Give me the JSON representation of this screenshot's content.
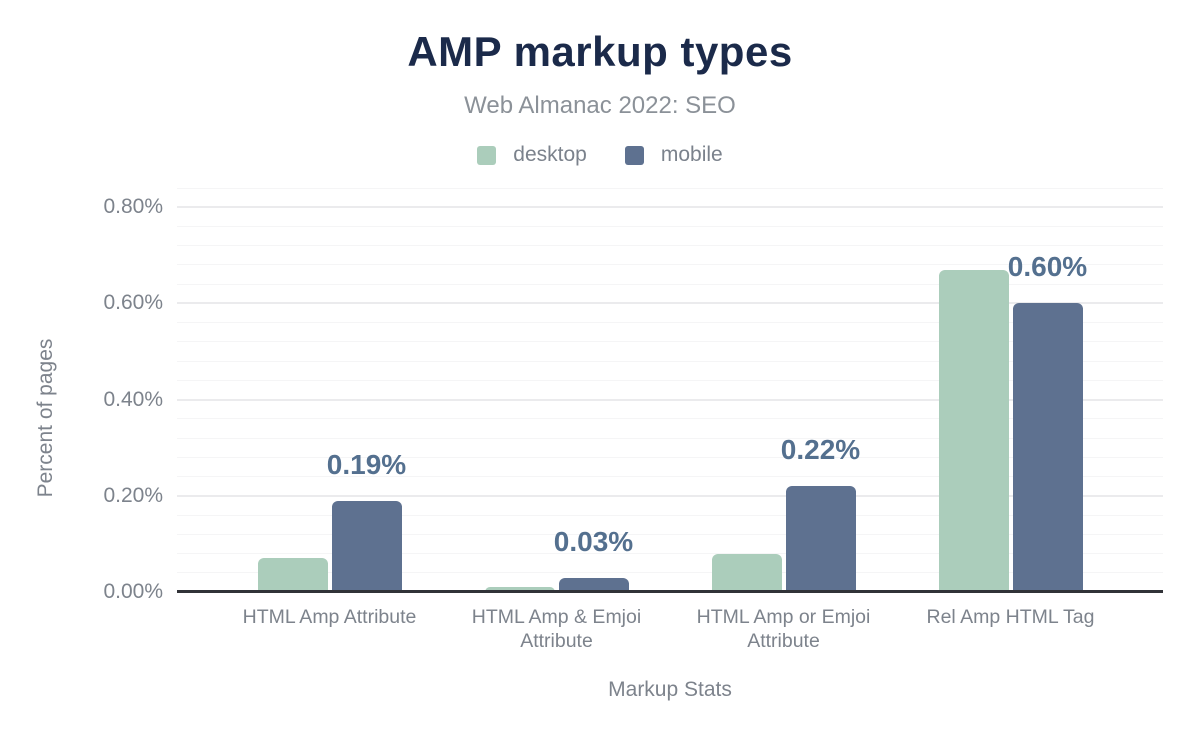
{
  "header": {
    "title": "AMP markup types",
    "subtitle": "Web Almanac 2022: SEO"
  },
  "legend": [
    {
      "label": "desktop",
      "color": "#abcdbb"
    },
    {
      "label": "mobile",
      "color": "#5e7190"
    }
  ],
  "axes": {
    "y_title": "Percent of pages",
    "x_title": "Markup Stats"
  },
  "colors": {
    "title": "#1b2a4a",
    "subtitle": "#8b9198",
    "axis_text": "#7d838c",
    "data_label": "#54708f",
    "axis_line": "#313338",
    "gridline_major": "#ebebed",
    "gridline_minor": "#f5f5f6",
    "desktop_bar": "#abcdbb",
    "mobile_bar": "#5e7190"
  },
  "chart_data": {
    "type": "bar",
    "title": "AMP markup types",
    "subtitle": "Web Almanac 2022: SEO",
    "xlabel": "Markup Stats",
    "ylabel": "Percent of pages",
    "categories": [
      "HTML Amp Attribute",
      "HTML Amp & Emjoi Attribute",
      "HTML Amp or Emjoi Attribute",
      "Rel Amp HTML Tag"
    ],
    "series": [
      {
        "name": "desktop",
        "color": "#abcdbb",
        "values": [
          0.07,
          0.01,
          0.08,
          0.67
        ],
        "unit": "%"
      },
      {
        "name": "mobile",
        "color": "#5e7190",
        "values": [
          0.19,
          0.03,
          0.22,
          0.6
        ],
        "unit": "%",
        "data_labels": [
          "0.19%",
          "0.03%",
          "0.22%",
          "0.60%"
        ]
      }
    ],
    "ylim": [
      0,
      0.84
    ],
    "yticks": [
      {
        "value": 0.0,
        "label": "0.00%"
      },
      {
        "value": 0.2,
        "label": "0.20%"
      },
      {
        "value": 0.4,
        "label": "0.40%"
      },
      {
        "value": 0.6,
        "label": "0.60%"
      },
      {
        "value": 0.8,
        "label": "0.80%"
      }
    ],
    "grid": {
      "orientation": "horizontal",
      "major_step": 0.2,
      "minor_step": 0.04
    },
    "legend_position": "top"
  }
}
